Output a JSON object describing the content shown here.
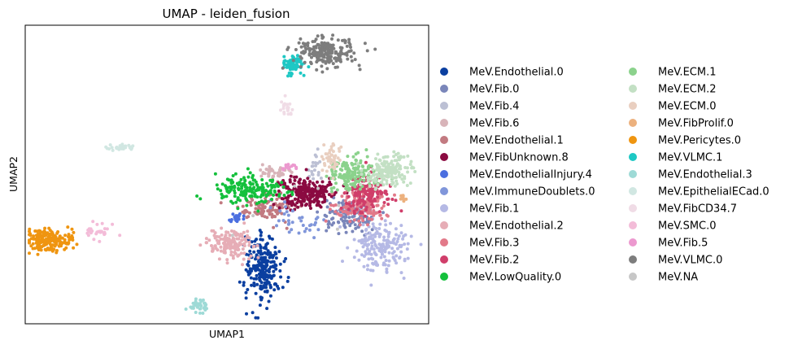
{
  "chart_data": {
    "type": "scatter",
    "title": "UMAP - leiden_fusion",
    "xlabel": "UMAP1",
    "ylabel": "UMAP2",
    "xlim": [
      0,
      100
    ],
    "ylim": [
      0,
      100
    ],
    "xticks": [],
    "yticks": [],
    "grid": false,
    "legend_placement": "right, outside axes, two columns",
    "series": [
      {
        "name": "MeV.Endothelial.0",
        "color": "#0b3fa0",
        "center": [
          59,
          19
        ],
        "spread": [
          2.2,
          5.5
        ],
        "count": 230
      },
      {
        "name": "MeV.Fib.0",
        "color": "#7a86ba",
        "center": [
          80,
          36
        ],
        "spread": [
          3.2,
          3
        ],
        "count": 120
      },
      {
        "name": "MeV.Fib.4",
        "color": "#bcc0d4",
        "center": [
          72,
          51
        ],
        "spread": [
          1,
          3
        ],
        "count": 20
      },
      {
        "name": "MeV.Fib.6",
        "color": "#d8b4b9",
        "center": [
          61,
          51
        ],
        "spread": [
          2.2,
          1
        ],
        "count": 40
      },
      {
        "name": "MeV.Endothelial.1",
        "color": "#c27a81",
        "center": [
          60,
          39
        ],
        "spread": [
          3.3,
          2.2
        ],
        "count": 110
      },
      {
        "name": "MeV.FibUnknown.8",
        "color": "#8b0a41",
        "center": [
          69.5,
          44
        ],
        "spread": [
          3.2,
          2.6
        ],
        "count": 230
      },
      {
        "name": "MeV.EndothelialInjury.4",
        "color": "#4b6fe0",
        "center": [
          52.5,
          35.5
        ],
        "spread": [
          0.7,
          1
        ],
        "count": 18
      },
      {
        "name": "MeV.ImmuneDoublets.0",
        "color": "#8096da",
        "center": [
          67,
          34
        ],
        "spread": [
          4.5,
          3
        ],
        "count": 35
      },
      {
        "name": "MeV.Fib.1",
        "color": "#b5b9e5",
        "center": [
          88,
          26
        ],
        "spread": [
          3.5,
          4.5
        ],
        "count": 180
      },
      {
        "name": "MeV.Endothelial.2",
        "color": "#e6adb6",
        "center": [
          51.5,
          26.5
        ],
        "spread": [
          3,
          2.3
        ],
        "count": 150
      },
      {
        "name": "MeV.Fib.3",
        "color": "#e27989",
        "center": [
          83,
          40
        ],
        "spread": [
          3.2,
          2.8
        ],
        "count": 150
      },
      {
        "name": "MeV.Fib.2",
        "color": "#d03e6a",
        "center": [
          85,
          44
        ],
        "spread": [
          3.2,
          3
        ],
        "count": 150
      },
      {
        "name": "MeV.LowQuality.0",
        "color": "#14c03c",
        "center": [
          55,
          45
        ],
        "spread": [
          4.2,
          2.3
        ],
        "count": 180
      },
      {
        "name": "MeV.ECM.1",
        "color": "#8bd28c",
        "center": [
          81,
          50
        ],
        "spread": [
          2.8,
          2.5
        ],
        "count": 150
      },
      {
        "name": "MeV.ECM.2",
        "color": "#c3e0c4",
        "center": [
          90,
          51
        ],
        "spread": [
          3.2,
          2.3
        ],
        "count": 160
      },
      {
        "name": "MeV.ECM.0",
        "color": "#e9cfc0",
        "center": [
          76,
          56
        ],
        "spread": [
          1.2,
          2.5
        ],
        "count": 45
      },
      {
        "name": "MeV.FibProlif.0",
        "color": "#ecb17e",
        "center": [
          93.5,
          42.3
        ],
        "spread": [
          0.8,
          0.5
        ],
        "count": 12
      },
      {
        "name": "MeV.Pericytes.0",
        "color": "#ef9510",
        "center": [
          6,
          28
        ],
        "spread": [
          2.8,
          1.8
        ],
        "count": 200
      },
      {
        "name": "MeV.VLMC.1",
        "color": "#1ec8c4",
        "center": [
          66.5,
          87
        ],
        "spread": [
          1.6,
          1.6
        ],
        "count": 70
      },
      {
        "name": "MeV.Endothelial.3",
        "color": "#9edad6",
        "center": [
          43,
          6
        ],
        "spread": [
          1.3,
          1
        ],
        "count": 40
      },
      {
        "name": "MeV.EpithelialECad.0",
        "color": "#d1e7e2",
        "center": [
          24.5,
          59
        ],
        "spread": [
          1.8,
          0.6
        ],
        "count": 30
      },
      {
        "name": "MeV.FibCD34.7",
        "color": "#f0dce6",
        "center": [
          64.5,
          73
        ],
        "spread": [
          0.8,
          1.8
        ],
        "count": 22
      },
      {
        "name": "MeV.SMC.0",
        "color": "#f3bcd8",
        "center": [
          18,
          31
        ],
        "spread": [
          1.8,
          1.4
        ],
        "count": 30
      },
      {
        "name": "MeV.Fib.5",
        "color": "#ec99cf",
        "center": [
          65.5,
          52.5
        ],
        "spread": [
          0.9,
          0.7
        ],
        "count": 18
      },
      {
        "name": "MeV.VLMC.0",
        "color": "#7d7d7d",
        "center": [
          74.5,
          91
        ],
        "spread": [
          3.8,
          2.4
        ],
        "count": 200
      },
      {
        "name": "MeV.NA",
        "color": "#c7c7c7",
        "center": [
          70,
          40
        ],
        "spread": [
          10,
          8
        ],
        "count": 6
      }
    ]
  }
}
